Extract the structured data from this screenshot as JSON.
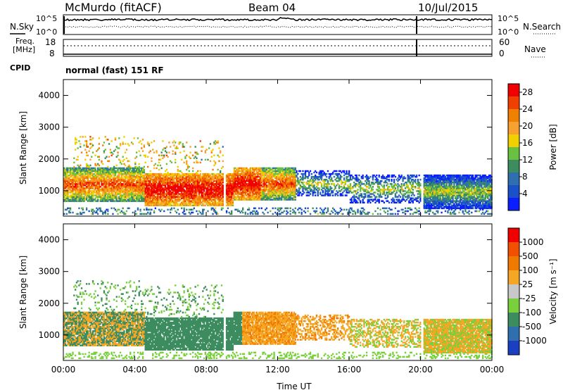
{
  "header": {
    "station": "McMurdo (fitACF)",
    "beam": "Beam 04",
    "date": "10/Jul/2015"
  },
  "noise_panel": {
    "left_label": "N.Sky",
    "right_label": "N.Search",
    "tick_top": "10^5",
    "tick_bottom": "10^0"
  },
  "freq_panel": {
    "left_label_1": "Freq.",
    "left_label_2": "[MHz]",
    "left_label_3": "CPID",
    "left_tick_top": "18",
    "left_tick_bottom": "8",
    "right_label": "Nave",
    "right_tick_top": "60",
    "right_tick_bottom": "0"
  },
  "mode_text": "normal (fast) 151 RF",
  "colors": {
    "power": [
      "#0a1eff",
      "#1a50c8",
      "#2f6fb0",
      "#3c8c60",
      "#6ac040",
      "#f0d000",
      "#f8a030",
      "#f08000",
      "#f04000",
      "#f00000"
    ],
    "velocity": [
      "#f00000",
      "#f05000",
      "#f07a00",
      "#f5a623",
      "#c8c8c8",
      "#7ad03c",
      "#3c8c60",
      "#2f6fb0",
      "#1a3fc0"
    ]
  },
  "chart_data": [
    {
      "type": "heatmap",
      "name": "power",
      "xlabel": "",
      "ylabel": "Slant Range [km]",
      "x_ticks": [
        "00:00",
        "04:00",
        "08:00",
        "12:00",
        "16:00",
        "20:00",
        "00:00"
      ],
      "y_ticks": [
        "1000",
        "2000",
        "3000",
        "4000"
      ],
      "xlim": [
        0,
        24
      ],
      "ylim": [
        200,
        4500
      ],
      "colorbar_label": "Power [dB]",
      "colorbar_ticks": [
        "4",
        "8",
        "12",
        "16",
        "20",
        "24",
        "28"
      ],
      "colorbar_range": [
        0,
        30
      ]
    },
    {
      "type": "heatmap",
      "name": "velocity",
      "xlabel": "Time UT",
      "ylabel": "Slant Range [km]",
      "x_ticks": [
        "00:00",
        "04:00",
        "08:00",
        "12:00",
        "16:00",
        "20:00",
        "00:00"
      ],
      "y_ticks": [
        "1000",
        "2000",
        "3000",
        "4000"
      ],
      "xlim": [
        0,
        24
      ],
      "ylim": [
        200,
        4500
      ],
      "colorbar_label": "Velocity [m s⁻¹]",
      "colorbar_ticks": [
        "1000",
        "500",
        "100",
        "25",
        "-25",
        "-100",
        "-500",
        "-1000"
      ]
    }
  ]
}
